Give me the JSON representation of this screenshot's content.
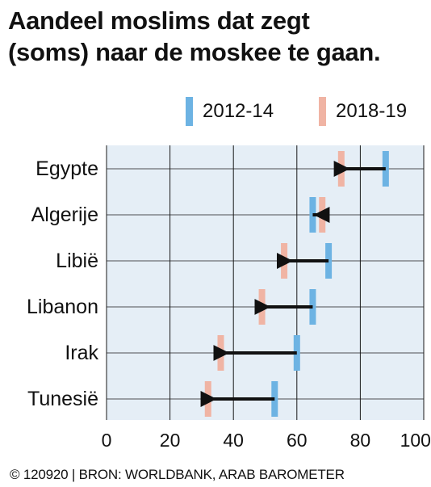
{
  "title": "Aandeel moslims dat zegt (soms) naar de moskee te gaan.",
  "legend": [
    {
      "label": "2012-14",
      "color": "#6db3e3"
    },
    {
      "label": "2018-19",
      "color": "#f0b4a4"
    }
  ],
  "footer": "© 120920 | BRON: WORLDBANK, ARAB BAROMETER",
  "colors": {
    "plot_bg": "#e5eef6",
    "grid": "#1a1a1a",
    "arrow": "#111111"
  },
  "chart_data": {
    "type": "dumbbell",
    "series": [
      {
        "name": "2012-14",
        "values": [
          88,
          65,
          70,
          65,
          60,
          53
        ]
      },
      {
        "name": "2018-19",
        "values": [
          74,
          68,
          56,
          49,
          36,
          32
        ]
      }
    ],
    "categories": [
      "Egypte",
      "Algerije",
      "Libië",
      "Libanon",
      "Irak",
      "Tunesië"
    ],
    "xlim": [
      0,
      100
    ],
    "x_ticks": [
      "0",
      "20",
      "40",
      "60",
      "80",
      "100%"
    ],
    "grid": true,
    "legend_position": "top-right"
  }
}
